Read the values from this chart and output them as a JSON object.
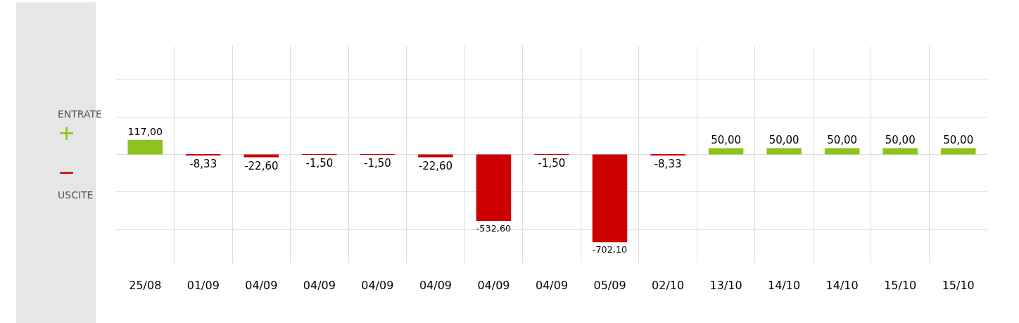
{
  "chart_data": {
    "type": "bar",
    "categories": [
      "25/08",
      "01/09",
      "04/09",
      "04/09",
      "04/09",
      "04/09",
      "04/09",
      "04/09",
      "05/09",
      "02/10",
      "13/10",
      "14/10",
      "14/10",
      "15/10",
      "15/10"
    ],
    "values": [
      117.0,
      -8.33,
      -22.6,
      -1.5,
      -1.5,
      -22.6,
      -532.6,
      -1.5,
      -702.1,
      -8.33,
      50.0,
      50.0,
      50.0,
      50.0,
      50.0
    ],
    "value_labels": [
      "117,00",
      "-8,33",
      "-22,60",
      "-1,50",
      "-1,50",
      "-22,60",
      "-532,60",
      "-1,50",
      "-702,10",
      "-8,33",
      "50,00",
      "50,00",
      "50,00",
      "50,00",
      "50,00"
    ],
    "colors": [
      "#8dc21f",
      "#cc0000",
      "#cc0000",
      "#cc0000",
      "#cc0000",
      "#cc0000",
      "#cc0000",
      "#cc0000",
      "#cc0000",
      "#cc0000",
      "#8dc21f",
      "#8dc21f",
      "#8dc21f",
      "#8dc21f",
      "#8dc21f"
    ],
    "ylim": [
      -870,
      870
    ],
    "yticks": [
      {
        "value": -600,
        "label": null
      },
      {
        "value": -300,
        "label": null
      },
      {
        "value": 0,
        "label": null
      },
      {
        "value": 300,
        "label": null
      },
      {
        "value": 600,
        "label": null
      }
    ],
    "tick_labels": "x",
    "grid": true,
    "annotations": [
      "ENTRATE",
      "+",
      "−",
      "USCITE"
    ]
  }
}
